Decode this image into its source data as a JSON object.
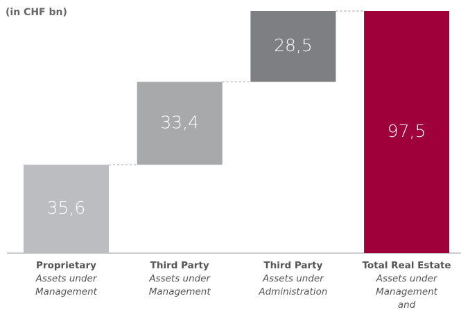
{
  "chart_data": {
    "type": "waterfall",
    "subtitle": "(in CHF bn)",
    "categories": [
      "Proprietary",
      "Third Party",
      "Third Party",
      "Total Real Estate"
    ],
    "category_descriptions": [
      "Assets under Management",
      "Assets under Management",
      "Assets under Administration",
      "Assets under Management and Administration"
    ],
    "values": [
      35.6,
      33.4,
      28.5,
      97.5
    ],
    "value_labels": [
      "35,6",
      "33,4",
      "28,5",
      "97,5"
    ],
    "measure": [
      "relative",
      "relative",
      "relative",
      "total"
    ],
    "colors": [
      "#bcbdc0",
      "#a8a9ab",
      "#7e7f82",
      "#a0003a"
    ],
    "ylim": [
      0,
      97.5
    ]
  }
}
